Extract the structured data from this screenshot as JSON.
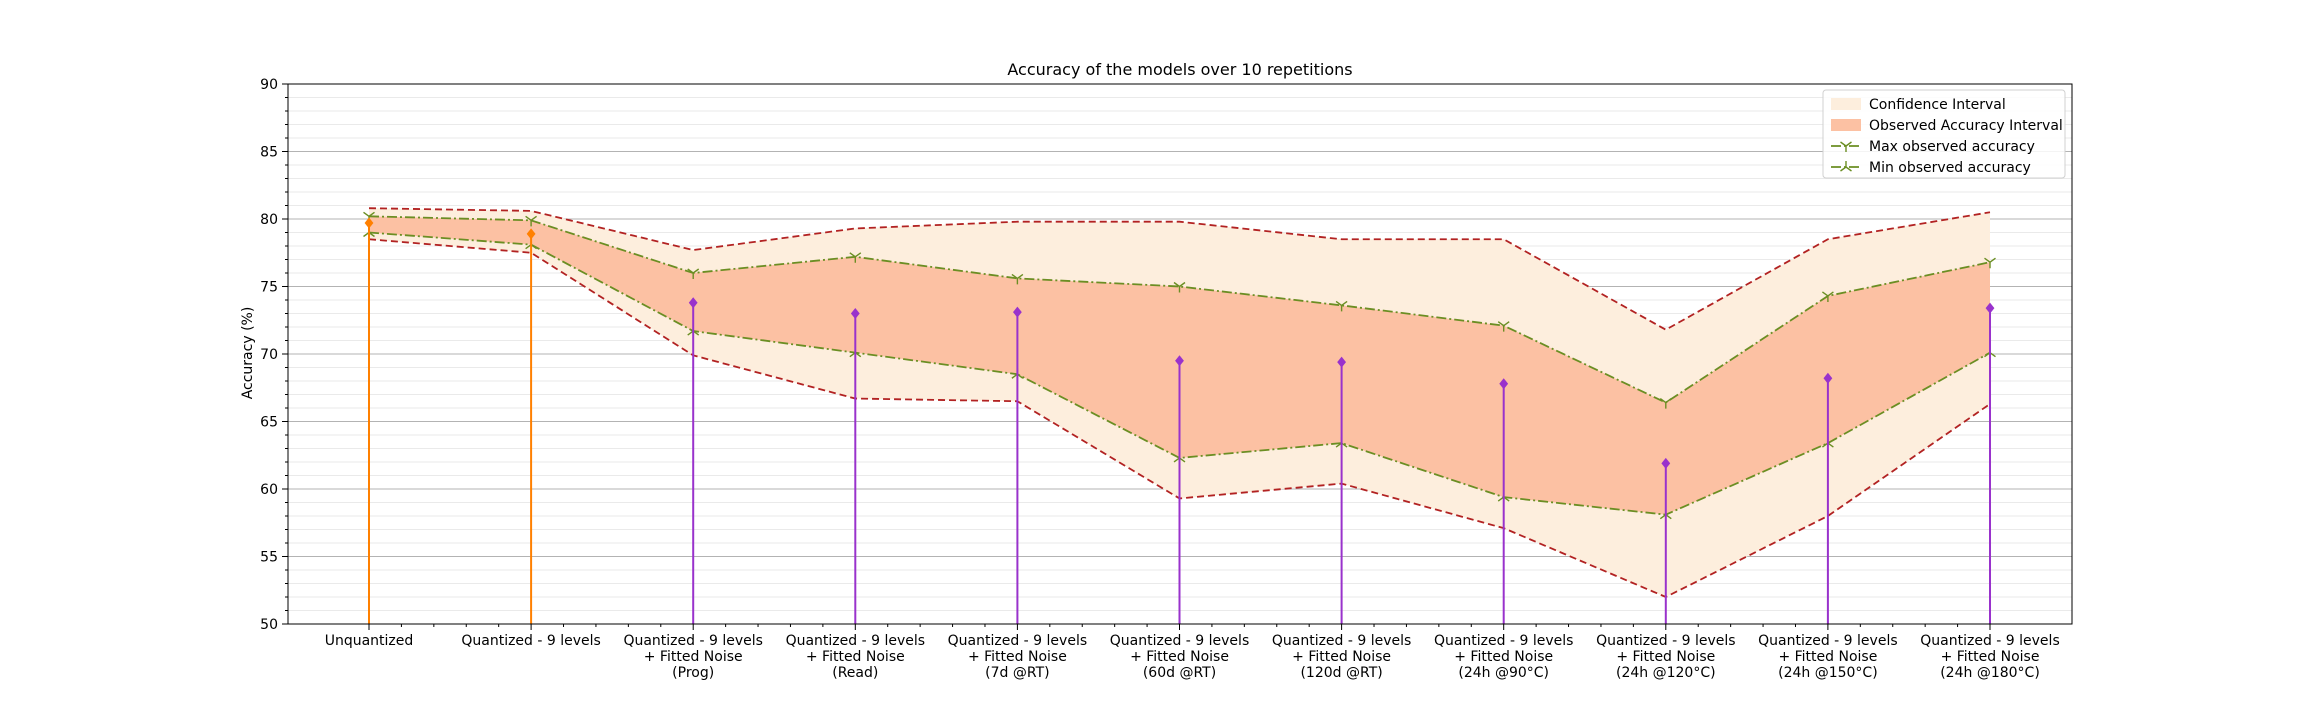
{
  "chart_data": {
    "type": "line",
    "title": "Accuracy of the models over 10 repetitions",
    "xlabel": "",
    "ylabel": "Accuracy (%)",
    "ylim": [
      50,
      90
    ],
    "yticks": [
      50,
      55,
      60,
      65,
      70,
      75,
      80,
      85,
      90
    ],
    "grid": true,
    "legend_position": "top-right",
    "categories": [
      [
        "Unquantized"
      ],
      [
        "Quantized - 9 levels"
      ],
      [
        "Quantized - 9 levels",
        "+ Fitted Noise",
        "(Prog)"
      ],
      [
        "Quantized - 9 levels",
        "+ Fitted Noise",
        "(Read)"
      ],
      [
        "Quantized - 9 levels",
        "+ Fitted Noise",
        "(7d @RT)"
      ],
      [
        "Quantized - 9 levels",
        "+ Fitted Noise",
        "(60d @RT)"
      ],
      [
        "Quantized - 9 levels",
        "+ Fitted Noise",
        "(120d @RT)"
      ],
      [
        "Quantized - 9 levels",
        "+ Fitted Noise",
        "(24h @90°C)"
      ],
      [
        "Quantized - 9 levels",
        "+ Fitted Noise",
        "(24h @120°C)"
      ],
      [
        "Quantized - 9 levels",
        "+ Fitted Noise",
        "(24h @150°C)"
      ],
      [
        "Quantized - 9 levels",
        "+ Fitted Noise",
        "(24h @180°C)"
      ]
    ],
    "confidence_interval": {
      "name": "Confidence Interval",
      "upper": [
        80.8,
        80.6,
        77.7,
        79.3,
        79.8,
        79.8,
        78.5,
        78.5,
        71.8,
        78.5,
        80.5
      ],
      "lower": [
        78.5,
        77.5,
        69.9,
        66.7,
        66.5,
        59.3,
        60.4,
        57.1,
        52.0,
        58.0,
        66.3
      ]
    },
    "observed_interval": {
      "name": "Observed Accuracy Interval"
    },
    "series": [
      {
        "name": "Max observed accuracy",
        "values": [
          80.2,
          79.9,
          76.0,
          77.2,
          75.6,
          75.0,
          73.6,
          72.1,
          66.4,
          74.3,
          76.8
        ]
      },
      {
        "name": "Min observed accuracy",
        "values": [
          79.0,
          78.1,
          71.7,
          70.1,
          68.5,
          62.3,
          63.4,
          59.4,
          58.1,
          63.4,
          70.1
        ]
      }
    ],
    "stems": {
      "values": [
        79.7,
        78.9,
        73.8,
        73.0,
        73.1,
        69.5,
        69.4,
        67.8,
        61.9,
        68.2,
        73.4
      ],
      "colors": [
        "#ff8000",
        "#ff8000",
        "#9932cc",
        "#9932cc",
        "#9932cc",
        "#9932cc",
        "#9932cc",
        "#9932cc",
        "#9932cc",
        "#9932cc",
        "#9932cc"
      ]
    },
    "colors": {
      "confidence_fill": "#fdeedd",
      "observed_fill": "#fcc1a3",
      "ci_line": "#b22222",
      "max_min_line": "#6b8e23",
      "grid_major": "#b3b3b3",
      "grid_minor": "#e3e3e3"
    }
  }
}
